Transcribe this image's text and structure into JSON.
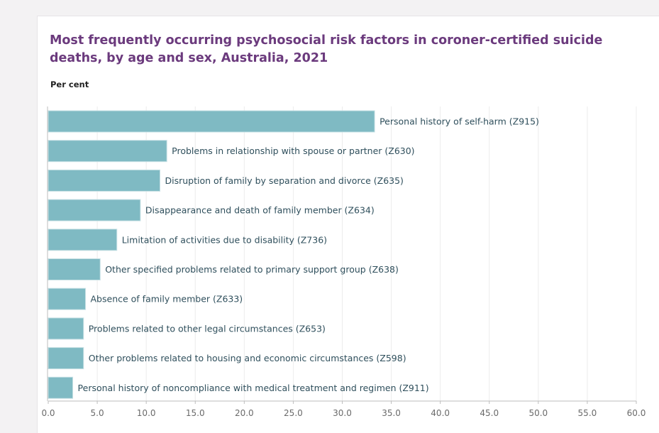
{
  "chart_data": {
    "type": "bar",
    "orientation": "horizontal",
    "title": "Most frequently occurring psychosocial risk factors in coroner-certified suicide deaths, by age and sex, Australia, 2021",
    "ylabel": "Per cent",
    "xlim": [
      0,
      60
    ],
    "x_ticks": [
      "0.0",
      "5.0",
      "10.0",
      "15.0",
      "20.0",
      "25.0",
      "30.0",
      "35.0",
      "40.0",
      "45.0",
      "50.0",
      "55.0",
      "60.0"
    ],
    "grid": true,
    "bar_color": "#7fbac3",
    "categories": [
      "Personal history of self-harm (Z915)",
      "Problems in relationship with spouse or partner (Z630)",
      "Disruption of family by separation and divorce (Z635)",
      "Disappearance and death of family member (Z634)",
      "Limitation of activities due to disability (Z736)",
      "Other specified problems related to primary support group (Z638)",
      "Absence of family member (Z633)",
      "Problems related to other legal circumstances (Z653)",
      "Other problems related to housing and economic circumstances (Z598)",
      "Personal history of noncompliance with medical treatment and regimen (Z911)"
    ],
    "values": [
      33.3,
      12.1,
      11.4,
      9.4,
      7.0,
      5.3,
      3.8,
      3.6,
      3.6,
      2.5
    ]
  }
}
